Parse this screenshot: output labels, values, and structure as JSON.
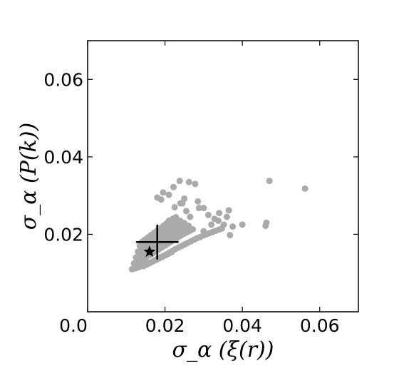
{
  "chart_data": {
    "type": "scatter",
    "title": "",
    "xlabel": "σ_α (ξ(r))",
    "ylabel": "σ_α (P(k))",
    "xlim": [
      0.0,
      0.07
    ],
    "ylim": [
      0.0,
      0.07
    ],
    "xticks": [
      "0.0",
      "0.02",
      "0.04",
      "0.06"
    ],
    "yticks": [
      "0.02",
      "0.04",
      "0.06"
    ],
    "grid": false,
    "legend": "none",
    "colors": {
      "points": "#aaaaaa",
      "markers": "#000000",
      "axes": "#000000"
    },
    "series": [
      {
        "marker": "circle",
        "x": [
          0.0115,
          0.0123,
          0.0131,
          0.0139,
          0.0147,
          0.0155,
          0.0163,
          0.0171,
          0.0179,
          0.0187,
          0.0195,
          0.0203,
          0.0211,
          0.0219,
          0.0227,
          0.0235,
          0.0243,
          0.0251,
          0.0259,
          0.0267,
          0.0275,
          0.0283,
          0.0291,
          0.0299,
          0.0307,
          0.0315,
          0.0323,
          0.0331,
          0.0339,
          0.0347,
          0.012,
          0.0128,
          0.0136,
          0.0144,
          0.0152,
          0.016,
          0.0168,
          0.0176,
          0.0184,
          0.0192,
          0.02,
          0.0208,
          0.0216,
          0.0224,
          0.0232,
          0.024,
          0.0248,
          0.0256,
          0.0264,
          0.0272,
          0.0125,
          0.0133,
          0.0141,
          0.0149,
          0.0157,
          0.0165,
          0.0173,
          0.0181,
          0.0189,
          0.0197,
          0.0205,
          0.0213,
          0.0221,
          0.0229,
          0.0237,
          0.0245,
          0.0253,
          0.0261,
          0.013,
          0.0138,
          0.0146,
          0.0154,
          0.0162,
          0.017,
          0.0178,
          0.0186,
          0.0194,
          0.0202,
          0.021,
          0.0218,
          0.0226,
          0.0234,
          0.0242,
          0.025,
          0.0135,
          0.0143,
          0.0151,
          0.0159,
          0.0167,
          0.0175,
          0.0183,
          0.0191,
          0.0199,
          0.0207,
          0.0215,
          0.0223,
          0.0231,
          0.0239,
          0.014,
          0.0148,
          0.0156,
          0.0164,
          0.0172,
          0.018,
          0.0188,
          0.0196,
          0.0204,
          0.0212,
          0.022,
          0.0228,
          0.0145,
          0.0153,
          0.0161,
          0.0169,
          0.0177,
          0.0185,
          0.0193,
          0.0201,
          0.0209,
          0.0217,
          0.018,
          0.0195,
          0.021,
          0.0222,
          0.0238,
          0.025,
          0.0262,
          0.0278,
          0.0288,
          0.03,
          0.0312,
          0.0328,
          0.0338,
          0.0352,
          0.036,
          0.0368,
          0.0375,
          0.04,
          0.046,
          0.0462,
          0.047,
          0.0562,
          0.0365,
          0.034,
          0.0285,
          0.0255,
          0.024,
          0.0225,
          0.019,
          0.0265,
          0.03,
          0.032,
          0.0245,
          0.021
        ],
        "y": [
          0.011,
          0.0112,
          0.0115,
          0.0118,
          0.0121,
          0.0125,
          0.0128,
          0.0132,
          0.0136,
          0.014,
          0.0144,
          0.0148,
          0.0153,
          0.0157,
          0.0162,
          0.0166,
          0.017,
          0.0174,
          0.0178,
          0.0182,
          0.0186,
          0.019,
          0.0193,
          0.0197,
          0.02,
          0.0203,
          0.0206,
          0.0209,
          0.0212,
          0.0215,
          0.0125,
          0.0128,
          0.0132,
          0.0136,
          0.0141,
          0.0146,
          0.0151,
          0.0156,
          0.0161,
          0.0166,
          0.0171,
          0.0176,
          0.0181,
          0.0186,
          0.0191,
          0.0196,
          0.0201,
          0.0205,
          0.0209,
          0.0213,
          0.014,
          0.0144,
          0.0148,
          0.0153,
          0.0158,
          0.0163,
          0.0168,
          0.0173,
          0.0178,
          0.0183,
          0.0188,
          0.0193,
          0.0198,
          0.0203,
          0.0208,
          0.0213,
          0.0218,
          0.0222,
          0.0155,
          0.0159,
          0.0164,
          0.0169,
          0.0174,
          0.0179,
          0.0184,
          0.0189,
          0.0194,
          0.0199,
          0.0204,
          0.0209,
          0.0214,
          0.0219,
          0.0224,
          0.0229,
          0.017,
          0.0175,
          0.018,
          0.0185,
          0.019,
          0.0195,
          0.02,
          0.0205,
          0.021,
          0.0215,
          0.022,
          0.0225,
          0.023,
          0.0235,
          0.018,
          0.0186,
          0.0192,
          0.0198,
          0.0204,
          0.021,
          0.0216,
          0.0222,
          0.0228,
          0.0234,
          0.024,
          0.0244,
          0.0118,
          0.0122,
          0.0126,
          0.013,
          0.0134,
          0.0138,
          0.0142,
          0.0146,
          0.015,
          0.0154,
          0.0295,
          0.0308,
          0.0302,
          0.0322,
          0.0338,
          0.0292,
          0.0335,
          0.033,
          0.0268,
          0.0268,
          0.025,
          0.024,
          0.0235,
          0.0225,
          0.0245,
          0.0198,
          0.022,
          0.0225,
          0.0222,
          0.023,
          0.0338,
          0.0318,
          0.0262,
          0.0255,
          0.0285,
          0.026,
          0.028,
          0.027,
          0.029,
          0.0245,
          0.0208,
          0.0225,
          0.028,
          0.0235
        ]
      }
    ],
    "annotations": {
      "star": {
        "x": 0.016,
        "y": 0.0155
      },
      "cross": {
        "x": 0.018,
        "y": 0.018,
        "x_half_width": 0.0055,
        "y_half_height": 0.0045
      }
    }
  }
}
